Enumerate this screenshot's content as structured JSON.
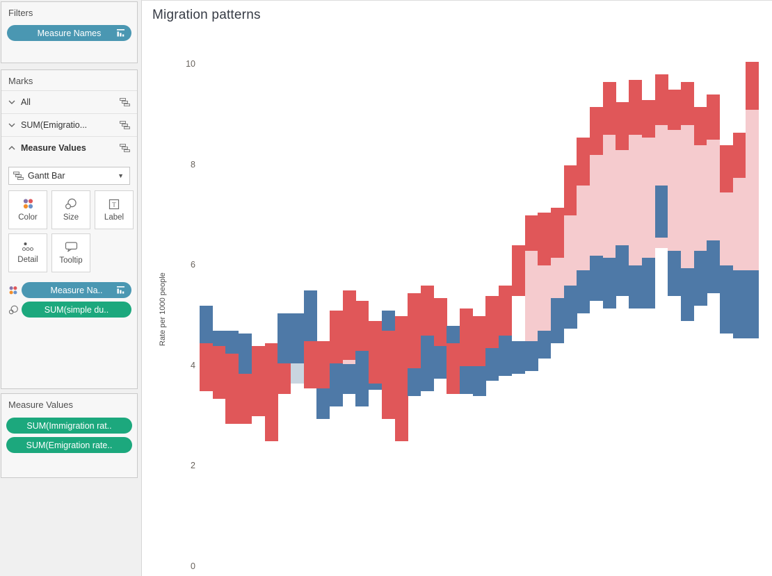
{
  "sidebar": {
    "filters": {
      "title": "Filters",
      "pills": [
        {
          "label": "Measure Names",
          "kind": "dimension",
          "sorted": true
        }
      ]
    },
    "marks": {
      "title": "Marks",
      "rows": [
        {
          "label": "All",
          "state": "collapsed"
        },
        {
          "label": "SUM(Emigratio...",
          "state": "collapsed"
        },
        {
          "label": "Measure Values",
          "state": "expanded"
        }
      ],
      "mark_type": {
        "selected": "Gantt Bar"
      },
      "buttons": {
        "color": "Color",
        "size": "Size",
        "label": "Label",
        "detail": "Detail",
        "tooltip": "Tooltip"
      },
      "shelf_pills": [
        {
          "icon": "color",
          "label": "Measure Na..",
          "color": "teal",
          "sorted": true
        },
        {
          "icon": "size",
          "label": "SUM(simple du..",
          "color": "green"
        }
      ]
    },
    "measure_values_card": {
      "title": "Measure Values",
      "pills": [
        {
          "label": "SUM(Immigration rat.."
        },
        {
          "label": "SUM(Emigration rate.."
        }
      ]
    }
  },
  "chart": {
    "title": "Migration patterns",
    "ylabel": "Rate per 1000 people"
  },
  "chart_data": {
    "type": "bar",
    "subtype": "gantt-bar",
    "title": "Migration patterns",
    "ylabel": "Rate per 1000 people",
    "yticks": [
      0,
      2,
      4,
      6,
      8,
      10
    ],
    "ylim": [
      0,
      10.5
    ],
    "x_axis_labels_visible": false,
    "n_columns": 43,
    "grid": false,
    "legend": "none",
    "colors": {
      "r": "#e05759",
      "p": "#f5cbce",
      "b": "#4e79a7",
      "g": "#c9d5e0"
    },
    "color_legend": {
      "r": "red segment (measure 1 range)",
      "p": "light pink segment (gap band)",
      "b": "blue segment (measure 2 range)",
      "g": "light gray-blue segment"
    },
    "columns": [
      {
        "segments": [
          [
            "b",
            5.2,
            4.45
          ],
          [
            "r",
            4.45,
            3.5
          ]
        ]
      },
      {
        "segments": [
          [
            "b",
            4.7,
            4.4
          ],
          [
            "r",
            4.4,
            3.35
          ]
        ]
      },
      {
        "segments": [
          [
            "b",
            4.7,
            4.25
          ],
          [
            "r",
            4.25,
            2.85
          ]
        ]
      },
      {
        "segments": [
          [
            "b",
            4.65,
            3.85
          ],
          [
            "r",
            3.85,
            2.85
          ]
        ]
      },
      {
        "segments": [
          [
            "r",
            4.4,
            3.0
          ]
        ]
      },
      {
        "segments": [
          [
            "r",
            4.45,
            2.5
          ]
        ]
      },
      {
        "segments": [
          [
            "b",
            5.05,
            4.05
          ],
          [
            "r",
            4.05,
            3.45
          ]
        ]
      },
      {
        "segments": [
          [
            "b",
            5.05,
            4.05
          ],
          [
            "g",
            4.05,
            3.65
          ]
        ]
      },
      {
        "segments": [
          [
            "b",
            5.5,
            4.5
          ],
          [
            "r",
            4.5,
            3.55
          ]
        ]
      },
      {
        "segments": [
          [
            "r",
            4.5,
            3.55
          ],
          [
            "b",
            3.55,
            2.95
          ]
        ]
      },
      {
        "segments": [
          [
            "r",
            5.1,
            4.05
          ],
          [
            "b",
            4.05,
            3.2
          ]
        ]
      },
      {
        "segments": [
          [
            "r",
            5.5,
            4.12
          ],
          [
            "p",
            4.12,
            4.04
          ],
          [
            "b",
            4.04,
            3.45
          ]
        ]
      },
      {
        "segments": [
          [
            "r",
            5.3,
            4.3
          ],
          [
            "b",
            4.3,
            3.2
          ]
        ]
      },
      {
        "segments": [
          [
            "r",
            4.9,
            3.65
          ],
          [
            "b",
            3.65,
            3.52
          ]
        ]
      },
      {
        "segments": [
          [
            "b",
            5.1,
            4.7
          ],
          [
            "r",
            4.7,
            2.95
          ]
        ]
      },
      {
        "segments": [
          [
            "r",
            5.0,
            2.5
          ]
        ]
      },
      {
        "segments": [
          [
            "r",
            5.45,
            3.95
          ],
          [
            "b",
            3.95,
            3.4
          ]
        ]
      },
      {
        "segments": [
          [
            "r",
            5.6,
            4.6
          ],
          [
            "b",
            4.6,
            3.5
          ]
        ]
      },
      {
        "segments": [
          [
            "r",
            5.35,
            4.4
          ],
          [
            "b",
            4.4,
            3.75
          ]
        ]
      },
      {
        "segments": [
          [
            "b",
            4.8,
            4.45
          ],
          [
            "r",
            4.45,
            3.45
          ]
        ]
      },
      {
        "segments": [
          [
            "r",
            5.15,
            4.0
          ],
          [
            "b",
            4.0,
            3.45
          ]
        ]
      },
      {
        "segments": [
          [
            "r",
            5.0,
            4.0
          ],
          [
            "b",
            4.0,
            3.4
          ]
        ]
      },
      {
        "segments": [
          [
            "r",
            5.4,
            4.35
          ],
          [
            "b",
            4.35,
            3.7
          ]
        ]
      },
      {
        "segments": [
          [
            "r",
            5.6,
            4.6
          ],
          [
            "b",
            4.6,
            3.8
          ]
        ]
      },
      {
        "segments": [
          [
            "r",
            6.4,
            5.4
          ],
          [
            "b",
            4.5,
            3.85
          ]
        ]
      },
      {
        "segments": [
          [
            "r",
            7.0,
            6.3
          ],
          [
            "p",
            6.3,
            4.5
          ],
          [
            "b",
            4.5,
            3.9
          ]
        ]
      },
      {
        "segments": [
          [
            "r",
            7.05,
            6.0
          ],
          [
            "p",
            6.0,
            4.7
          ],
          [
            "b",
            4.7,
            4.15
          ]
        ]
      },
      {
        "segments": [
          [
            "r",
            7.15,
            6.15
          ],
          [
            "p",
            6.15,
            5.35
          ],
          [
            "b",
            5.35,
            4.45
          ]
        ]
      },
      {
        "segments": [
          [
            "r",
            8.0,
            7.0
          ],
          [
            "p",
            7.0,
            5.6
          ],
          [
            "b",
            5.6,
            4.75
          ]
        ]
      },
      {
        "segments": [
          [
            "r",
            8.55,
            7.6
          ],
          [
            "p",
            7.6,
            5.9
          ],
          [
            "b",
            5.9,
            5.05
          ]
        ]
      },
      {
        "segments": [
          [
            "r",
            9.15,
            8.2
          ],
          [
            "p",
            8.2,
            6.2
          ],
          [
            "b",
            6.2,
            5.3
          ]
        ]
      },
      {
        "segments": [
          [
            "r",
            9.65,
            8.6
          ],
          [
            "p",
            8.6,
            6.15
          ],
          [
            "b",
            6.15,
            5.15
          ]
        ]
      },
      {
        "segments": [
          [
            "r",
            9.25,
            8.3
          ],
          [
            "p",
            8.3,
            6.4
          ],
          [
            "b",
            6.4,
            5.4
          ]
        ]
      },
      {
        "segments": [
          [
            "r",
            9.7,
            8.6
          ],
          [
            "p",
            8.6,
            6.0
          ],
          [
            "b",
            6.0,
            5.15
          ]
        ]
      },
      {
        "segments": [
          [
            "r",
            9.3,
            8.55
          ],
          [
            "p",
            8.55,
            6.15
          ],
          [
            "b",
            6.15,
            5.15
          ]
        ]
      },
      {
        "segments": [
          [
            "r",
            9.8,
            8.8
          ],
          [
            "p",
            8.8,
            7.6
          ],
          [
            "b",
            7.6,
            6.55
          ],
          [
            "p",
            6.55,
            6.35
          ]
        ]
      },
      {
        "segments": [
          [
            "r",
            9.5,
            8.7
          ],
          [
            "p",
            8.7,
            6.3
          ],
          [
            "b",
            6.3,
            5.4
          ]
        ]
      },
      {
        "segments": [
          [
            "r",
            9.65,
            8.8
          ],
          [
            "p",
            8.8,
            5.95
          ],
          [
            "b",
            5.95,
            4.9
          ]
        ]
      },
      {
        "segments": [
          [
            "r",
            9.15,
            8.4
          ],
          [
            "p",
            8.4,
            6.3
          ],
          [
            "b",
            6.3,
            5.2
          ]
        ]
      },
      {
        "segments": [
          [
            "r",
            9.4,
            8.5
          ],
          [
            "p",
            8.5,
            6.5
          ],
          [
            "b",
            6.5,
            5.45
          ]
        ]
      },
      {
        "segments": [
          [
            "r",
            8.4,
            7.45
          ],
          [
            "p",
            7.45,
            6.0
          ],
          [
            "b",
            6.0,
            4.65
          ]
        ]
      },
      {
        "segments": [
          [
            "r",
            8.65,
            7.75
          ],
          [
            "p",
            7.75,
            5.9
          ],
          [
            "b",
            5.9,
            4.55
          ]
        ]
      },
      {
        "segments": [
          [
            "r",
            10.05,
            9.1
          ],
          [
            "p",
            9.1,
            5.9
          ],
          [
            "b",
            5.9,
            4.55
          ]
        ]
      }
    ]
  }
}
